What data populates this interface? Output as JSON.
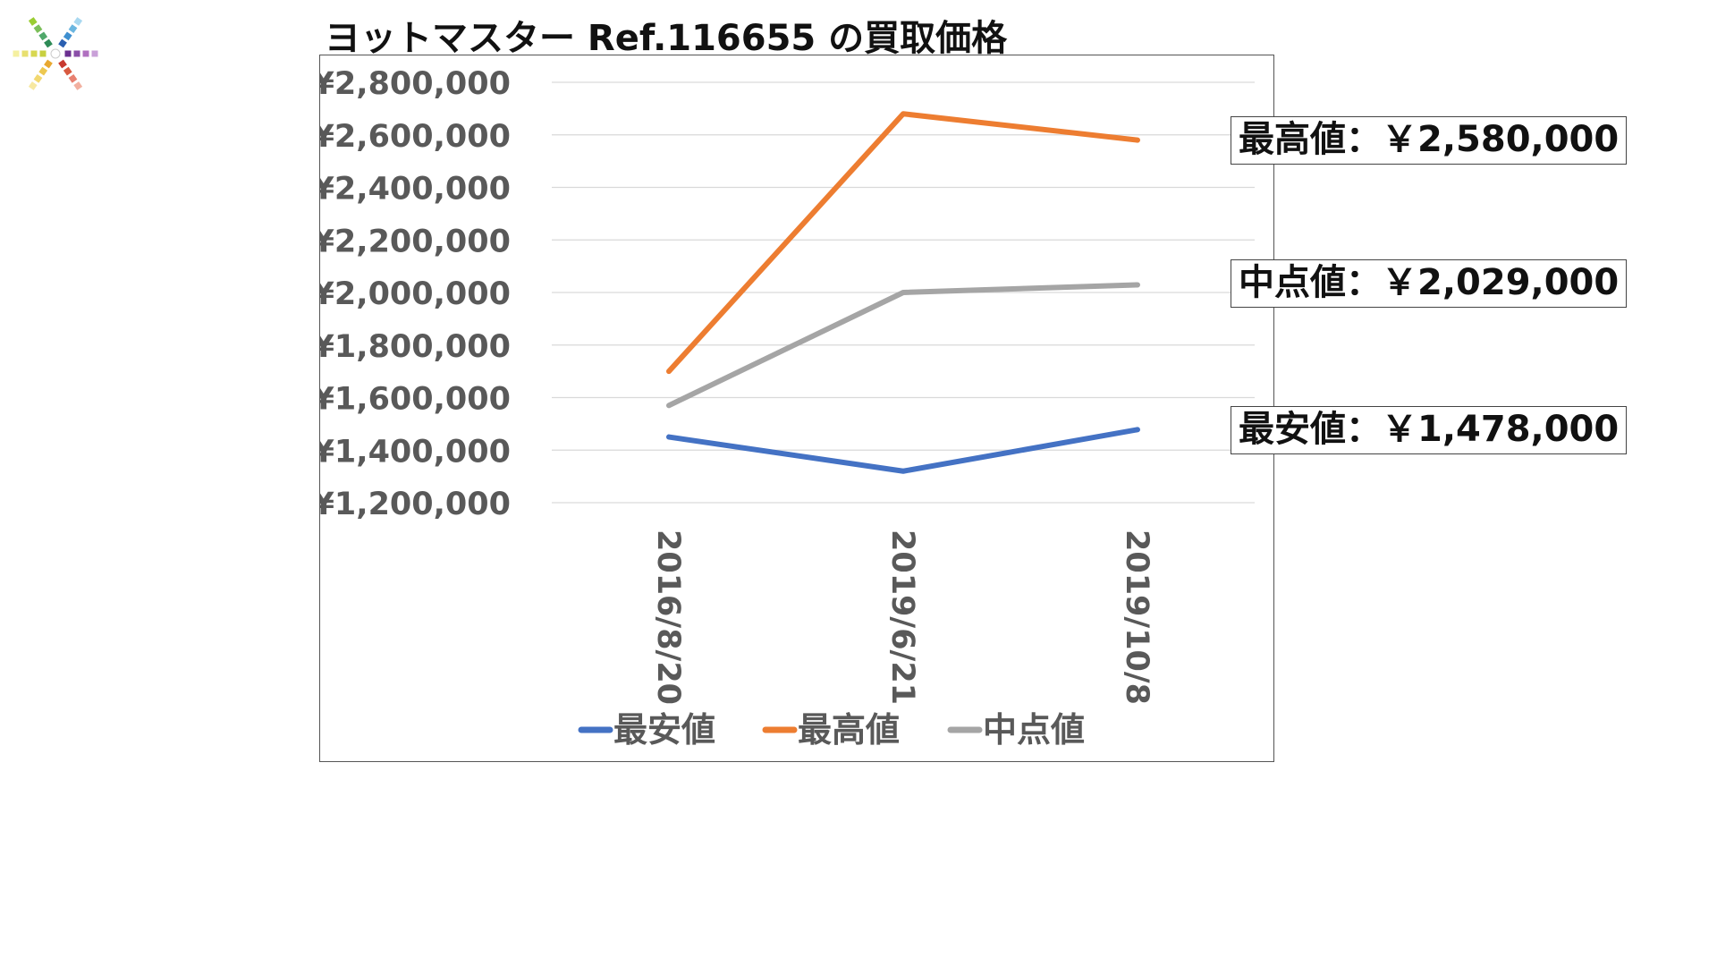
{
  "title": "ヨットマスター Ref.116655 の買取価格",
  "colors": {
    "min": "#4472C4",
    "max": "#ED7D31",
    "mid": "#A5A5A5",
    "grid": "#D9D9D9",
    "tick_text": "#595959"
  },
  "callouts": [
    {
      "series": "最高値",
      "label": "最高値",
      "sep": "：",
      "value": "￥2,580,000"
    },
    {
      "series": "中点値",
      "label": "中点値",
      "sep": "：",
      "value": "￥2,029,000"
    },
    {
      "series": "最安値",
      "label": "最安値",
      "sep": "：",
      "value": "￥1,478,000"
    }
  ],
  "chart_data": {
    "type": "line",
    "title": "",
    "xlabel": "",
    "ylabel": "",
    "categories": [
      "2016/8/20",
      "2019/6/21",
      "2019/10/8"
    ],
    "ylim": [
      1200000,
      2800000
    ],
    "yticks": [
      1200000,
      1400000,
      1600000,
      1800000,
      2000000,
      2200000,
      2400000,
      2600000,
      2800000
    ],
    "ytick_labels": [
      "¥1,200,000",
      "¥1,400,000",
      "¥1,600,000",
      "¥1,800,000",
      "¥2,000,000",
      "¥2,200,000",
      "¥2,400,000",
      "¥2,600,000",
      "¥2,800,000"
    ],
    "grid": true,
    "legend_position": "bottom",
    "series": [
      {
        "name": "最安値",
        "color": "#4472C4",
        "values": [
          1450000,
          1320000,
          1478000
        ]
      },
      {
        "name": "最高値",
        "color": "#ED7D31",
        "values": [
          1700000,
          2680000,
          2580000
        ]
      },
      {
        "name": "中点値",
        "color": "#A5A5A5",
        "values": [
          1570000,
          2000000,
          2029000
        ]
      }
    ]
  }
}
